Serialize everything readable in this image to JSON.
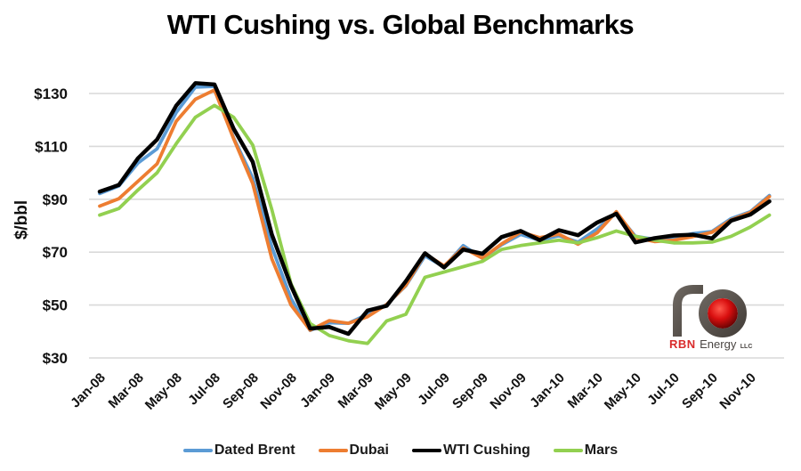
{
  "chart_data": {
    "type": "line",
    "title": "WTI Cushing vs. Global Benchmarks",
    "ylabel": "$/bbl",
    "ylim": [
      30,
      130
    ],
    "yticks": [
      130,
      110,
      90,
      70,
      50,
      30
    ],
    "ytick_labels": [
      "$130",
      "$110",
      "$90",
      "$70",
      "$50",
      "$30"
    ],
    "grid": "horizontal-only",
    "legend_position": "bottom",
    "xtick_every": 2,
    "x": [
      "Jan-08",
      "Feb-08",
      "Mar-08",
      "Apr-08",
      "May-08",
      "Jun-08",
      "Jul-08",
      "Aug-08",
      "Sep-08",
      "Oct-08",
      "Nov-08",
      "Dec-08",
      "Jan-09",
      "Feb-09",
      "Mar-09",
      "Apr-09",
      "May-09",
      "Jun-09",
      "Jul-09",
      "Aug-09",
      "Sep-09",
      "Oct-09",
      "Nov-09",
      "Dec-09",
      "Jan-10",
      "Feb-10",
      "Mar-10",
      "Apr-10",
      "May-10",
      "Jun-10",
      "Jul-10",
      "Aug-10",
      "Sep-10",
      "Oct-10",
      "Nov-10",
      "Dec-10"
    ],
    "series": [
      {
        "name": "Dated Brent",
        "color": "#5B9BD5",
        "width": 3.8,
        "values": [
          92.2,
          95.0,
          103.7,
          109.1,
          122.8,
          132.4,
          132.7,
          113.2,
          98.0,
          71.9,
          52.5,
          40.4,
          43.3,
          43.1,
          46.5,
          50.2,
          57.3,
          68.6,
          64.4,
          72.5,
          67.7,
          72.8,
          76.7,
          74.5,
          76.2,
          73.8,
          78.8,
          84.8,
          76.0,
          74.8,
          75.6,
          77.0,
          77.8,
          82.7,
          85.3,
          91.4
        ]
      },
      {
        "name": "Dubai",
        "color": "#ED7D31",
        "width": 3.8,
        "values": [
          87.4,
          90.2,
          96.8,
          103.4,
          119.5,
          127.8,
          131.3,
          112.9,
          95.9,
          67.4,
          50.0,
          40.5,
          44.1,
          43.1,
          45.6,
          50.2,
          57.5,
          69.4,
          64.8,
          71.6,
          67.7,
          73.1,
          77.6,
          75.5,
          76.8,
          73.0,
          77.3,
          85.3,
          75.5,
          74.0,
          74.5,
          75.9,
          77.5,
          82.2,
          85.0,
          91.0
        ]
      },
      {
        "name": "WTI Cushing",
        "color": "#000000",
        "width": 4.5,
        "values": [
          92.9,
          95.4,
          105.5,
          112.6,
          125.4,
          133.9,
          133.4,
          116.7,
          104.1,
          76.6,
          57.3,
          41.1,
          41.7,
          39.1,
          47.9,
          49.7,
          59.0,
          69.6,
          64.2,
          71.0,
          69.4,
          75.7,
          78.0,
          74.5,
          78.3,
          76.4,
          81.2,
          84.5,
          73.7,
          75.3,
          76.3,
          76.6,
          75.2,
          81.9,
          84.2,
          89.2
        ]
      },
      {
        "name": "Mars",
        "color": "#92D050",
        "width": 3.8,
        "values": [
          84.0,
          86.5,
          93.5,
          100.0,
          111.0,
          121.0,
          125.5,
          121.0,
          110.5,
          86.0,
          58.0,
          43.0,
          38.5,
          36.5,
          35.5,
          44.0,
          46.5,
          60.5,
          62.5,
          64.5,
          66.5,
          71.0,
          72.5,
          73.5,
          74.5,
          73.5,
          75.5,
          78.0,
          76.0,
          74.5,
          73.5,
          73.5,
          73.8,
          76.0,
          79.5,
          84.0
        ]
      }
    ]
  },
  "logo": {
    "brand": "RBN",
    "brand_rest": "Energy",
    "suffix": "LLC",
    "red": "#D92B2B",
    "dark_gray": "#4A4542",
    "tube_gray": "#575049"
  },
  "style": {
    "gridline_color": "#D9D9D9",
    "background": "#FFFFFF",
    "text_color": "#111111"
  }
}
